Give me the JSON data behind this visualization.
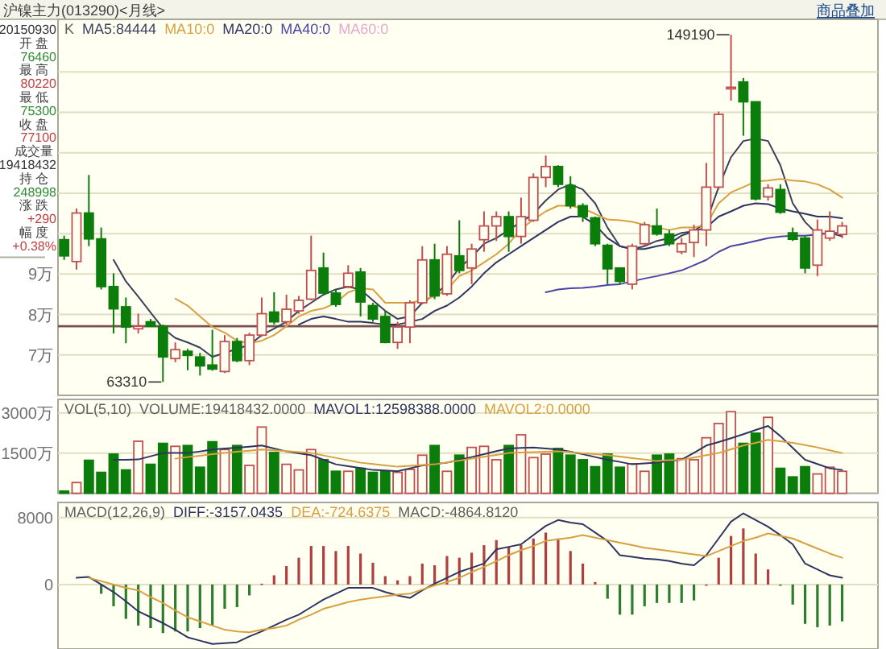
{
  "chart_data": [
    {
      "type": "candlestick",
      "title": "沪镍主力(013290)<月线>",
      "categories": [
        null,
        null,
        null,
        null,
        null,
        null,
        null,
        null,
        null,
        null,
        null,
        null,
        null,
        null,
        null,
        null,
        null,
        null,
        null,
        null,
        null,
        null,
        null,
        null,
        null,
        null,
        null,
        null,
        null,
        null,
        null,
        null,
        null,
        null,
        null,
        null,
        null,
        null,
        null,
        null,
        null,
        null,
        null,
        null,
        null,
        null,
        null,
        null,
        null,
        null,
        null,
        null,
        null,
        null,
        null,
        null,
        null,
        null,
        null,
        null,
        null,
        null,
        null,
        null
      ],
      "ohlc": [
        [
          9.85,
          9.95,
          9.35,
          9.45
        ],
        [
          9.31,
          10.62,
          9.11,
          10.51
        ],
        [
          10.51,
          11.45,
          9.69,
          9.87
        ],
        [
          9.87,
          10.15,
          8.62,
          8.69
        ],
        [
          8.69,
          9.02,
          7.53,
          8.14
        ],
        [
          8.19,
          8.42,
          7.29,
          7.69
        ],
        [
          7.646,
          8.022,
          7.53,
          7.71
        ],
        [
          7.82,
          7.89,
          7.69,
          7.71
        ],
        [
          7.71,
          7.75,
          6.331,
          6.95
        ],
        [
          6.91,
          7.31,
          6.82,
          7.13
        ],
        [
          7.09,
          7.15,
          6.62,
          6.99
        ],
        [
          6.95,
          7.05,
          6.49,
          6.73
        ],
        [
          6.75,
          7.62,
          6.61,
          6.65
        ],
        [
          6.59,
          7.49,
          6.55,
          7.33
        ],
        [
          7.33,
          7.42,
          6.82,
          6.86
        ],
        [
          6.86,
          7.55,
          6.75,
          7.49
        ],
        [
          7.49,
          8.42,
          7.45,
          8.02
        ],
        [
          8.06,
          8.55,
          7.75,
          7.82
        ],
        [
          7.82,
          8.49,
          7.75,
          8.13
        ],
        [
          8.09,
          8.46,
          8.02,
          8.35
        ],
        [
          8.38,
          9.95,
          8.35,
          9.09
        ],
        [
          9.15,
          9.53,
          8.49,
          8.53
        ],
        [
          8.53,
          8.62,
          8.19,
          8.25
        ],
        [
          8.69,
          9.22,
          8.65,
          9.02
        ],
        [
          9.05,
          9.15,
          7.95,
          8.31
        ],
        [
          8.22,
          8.29,
          7.82,
          7.89
        ],
        [
          7.95,
          8.09,
          7.29,
          7.31
        ],
        [
          7.31,
          7.82,
          7.15,
          7.69
        ],
        [
          7.69,
          8.35,
          7.29,
          8.29
        ],
        [
          8.29,
          9.69,
          8.25,
          9.35
        ],
        [
          9.35,
          9.75,
          8.38,
          8.46
        ],
        [
          8.51,
          9.69,
          8.46,
          9.49
        ],
        [
          9.45,
          10.33,
          9.02,
          9.09
        ],
        [
          9.15,
          9.75,
          8.75,
          9.62
        ],
        [
          9.85,
          10.55,
          9.55,
          10.19
        ],
        [
          10.19,
          10.55,
          9.82,
          10.42
        ],
        [
          10.42,
          10.55,
          9.55,
          9.93
        ],
        [
          9.93,
          10.89,
          9.75,
          10.42
        ],
        [
          10.33,
          11.49,
          10.29,
          11.39
        ],
        [
          11.39,
          11.93,
          11.15,
          11.66
        ],
        [
          11.66,
          11.69,
          11.15,
          11.22
        ],
        [
          11.19,
          11.42,
          10.62,
          10.69
        ],
        [
          10.69,
          10.75,
          10.29,
          10.42
        ],
        [
          10.39,
          10.42,
          9.69,
          9.75
        ],
        [
          9.71,
          9.75,
          8.75,
          9.13
        ],
        [
          9.15,
          9.15,
          8.75,
          8.82
        ],
        [
          8.75,
          9.75,
          8.62,
          9.69
        ],
        [
          9.75,
          10.29,
          9.69,
          10.22
        ],
        [
          10.19,
          10.62,
          9.95,
          9.99
        ],
        [
          9.99,
          10.09,
          9.69,
          9.75
        ],
        [
          9.55,
          9.89,
          9.49,
          9.75
        ],
        [
          9.78,
          10.22,
          9.42,
          10.09
        ],
        [
          10.09,
          11.75,
          9.69,
          11.15
        ],
        [
          11.15,
          13.02,
          11.09,
          12.95
        ],
        [
          13.6,
          14.919,
          13.29,
          13.62
        ],
        [
          13.75,
          13.85,
          12.42,
          13.26
        ],
        [
          13.26,
          13.26,
          10.82,
          10.86
        ],
        [
          10.91,
          11.22,
          10.82,
          11.13
        ],
        [
          11.09,
          11.22,
          10.49,
          10.53
        ],
        [
          10.02,
          10.15,
          9.82,
          9.86
        ],
        [
          9.89,
          9.95,
          9.02,
          9.15
        ],
        [
          9.22,
          10.35,
          8.95,
          10.09
        ],
        [
          9.89,
          10.55,
          9.82,
          10.06
        ],
        [
          9.98,
          10.29,
          9.89,
          10.19
        ]
      ],
      "colors": [
        "#0b7d0b",
        "#c05050",
        "#0b7d0b",
        "#0b7d0b",
        "#0b7d0b",
        "#0b7d0b",
        "#c05050",
        "#0b7d0b",
        "#0b7d0b",
        "#c05050",
        "#0b7d0b",
        "#0b7d0b",
        "#0b7d0b",
        "#c05050",
        "#0b7d0b",
        "#c05050",
        "#c05050",
        "#0b7d0b",
        "#c05050",
        "#c05050",
        "#c05050",
        "#0b7d0b",
        "#0b7d0b",
        "#c05050",
        "#0b7d0b",
        "#0b7d0b",
        "#0b7d0b",
        "#c05050",
        "#c05050",
        "#c05050",
        "#0b7d0b",
        "#c05050",
        "#0b7d0b",
        "#c05050",
        "#c05050",
        "#c05050",
        "#0b7d0b",
        "#c05050",
        "#c05050",
        "#c05050",
        "#0b7d0b",
        "#0b7d0b",
        "#0b7d0b",
        "#0b7d0b",
        "#0b7d0b",
        "#0b7d0b",
        "#c05050",
        "#c05050",
        "#0b7d0b",
        "#0b7d0b",
        "#c05050",
        "#c05050",
        "#c05050",
        "#c05050",
        "#c05050",
        "#0b7d0b",
        "#0b7d0b",
        "#c05050",
        "#0b7d0b",
        "#0b7d0b",
        "#0b7d0b",
        "#c05050",
        "#c05050",
        "#c05050"
      ],
      "series": [
        {
          "name": "MA5:84444",
          "type": "line",
          "color": "#3a3f5c",
          "values": [
            null,
            null,
            null,
            null,
            9.35,
            8.82,
            8.44,
            8.05,
            7.66,
            7.42,
            7.31,
            7.18,
            6.95,
            7.05,
            7.15,
            7.25,
            7.49,
            7.65,
            7.82,
            8.09,
            8.29,
            8.49,
            8.62,
            8.69,
            8.62,
            8.35,
            8.09,
            7.89,
            7.95,
            8.29,
            8.49,
            8.75,
            9.15,
            9.42,
            9.75,
            9.89,
            10.09,
            10.29,
            10.49,
            10.82,
            11.09,
            11.22,
            11.09,
            10.75,
            10.15,
            9.69,
            9.62,
            9.69,
            9.82,
            9.89,
            10.02,
            10.06,
            10.29,
            11.15,
            11.89,
            12.29,
            12.35,
            12.29,
            11.69,
            10.75,
            10.29,
            9.98,
            10.02,
            9.93
          ]
        },
        {
          "name": "MA10:0",
          "type": "line",
          "color": "#d8a040",
          "values": [
            null,
            null,
            null,
            null,
            null,
            null,
            null,
            null,
            null,
            8.39,
            8.22,
            7.95,
            7.69,
            7.55,
            7.35,
            7.29,
            7.35,
            7.49,
            7.71,
            7.95,
            8.09,
            8.15,
            8.29,
            8.55,
            8.65,
            8.62,
            8.29,
            8.29,
            8.29,
            8.35,
            8.45,
            8.62,
            8.95,
            9.09,
            9.29,
            9.49,
            9.75,
            10.11,
            10.35,
            10.55,
            10.69,
            10.69,
            10.62,
            10.49,
            10.35,
            10.33,
            10.29,
            10.22,
            10.15,
            10.09,
            10.15,
            10.15,
            10.22,
            10.75,
            11.02,
            11.15,
            11.29,
            11.31,
            11.35,
            11.31,
            11.29,
            11.22,
            11.09,
            10.89
          ]
        },
        {
          "name": "MA20:0",
          "type": "line",
          "color": "#2e3560",
          "values": [
            null,
            null,
            null,
            null,
            null,
            null,
            null,
            null,
            null,
            null,
            null,
            null,
            null,
            null,
            null,
            null,
            null,
            null,
            null,
            7.75,
            7.89,
            7.95,
            7.89,
            7.82,
            7.82,
            7.79,
            7.75,
            7.75,
            7.82,
            7.89,
            8.09,
            8.22,
            8.42,
            8.69,
            9.02,
            9.29,
            9.49,
            9.69,
            9.89,
            10.09,
            10.29,
            10.42,
            10.42,
            10.22,
            9.89,
            9.69,
            9.62,
            9.62,
            9.69,
            9.75,
            9.95,
            10.06,
            10.15,
            10.42,
            10.55,
            10.69,
            10.75,
            10.73,
            10.62,
            10.55,
            10.49,
            10.42,
            10.42,
            10.38
          ]
        },
        {
          "name": "MA40:0",
          "type": "line",
          "color": "#4a44a8",
          "values": [
            null,
            null,
            null,
            null,
            null,
            null,
            null,
            null,
            null,
            null,
            null,
            null,
            null,
            null,
            null,
            null,
            null,
            null,
            null,
            null,
            null,
            null,
            null,
            null,
            null,
            null,
            null,
            null,
            null,
            null,
            null,
            null,
            null,
            null,
            null,
            null,
            null,
            null,
            null,
            8.55,
            8.62,
            8.65,
            8.66,
            8.69,
            8.73,
            8.75,
            8.82,
            8.89,
            8.95,
            9.02,
            9.09,
            9.22,
            9.35,
            9.55,
            9.69,
            9.75,
            9.82,
            9.89,
            9.93,
            9.95,
            9.95,
            9.98,
            10.02,
            10.02
          ]
        },
        {
          "name": "MA60:0",
          "type": "line",
          "color": "#e8a8d0",
          "values": [
            null,
            null,
            null,
            null,
            null,
            null,
            null,
            null,
            null,
            null,
            null,
            null,
            null,
            null,
            null,
            null,
            null,
            null,
            null,
            null,
            null,
            null,
            null,
            null,
            null,
            null,
            null,
            null,
            null,
            null,
            null,
            null,
            null,
            null,
            null,
            null,
            null,
            null,
            null,
            null,
            null,
            null,
            null,
            null,
            null,
            null,
            null,
            null,
            null,
            null,
            null,
            null,
            null,
            null,
            null,
            null,
            null,
            null,
            null,
            null,
            null,
            null,
            null,
            null
          ]
        }
      ],
      "ylim": [
        6,
        15.3
      ],
      "yticks": [
        {
          "value": 7,
          "label": "7万"
        },
        {
          "value": 8,
          "label": "8万"
        },
        {
          "value": 9,
          "label": "9万"
        },
        {
          "value": 10,
          "label": null
        },
        {
          "value": 11,
          "label": null
        },
        {
          "value": 12,
          "label": null
        },
        {
          "value": 13,
          "label": null
        },
        {
          "value": 14,
          "label": null
        }
      ],
      "grid": "y",
      "legend": "top left",
      "tick_labels": "y",
      "ref_lines": [
        {
          "axis": "y",
          "value": 7.71,
          "color": "#7a5050",
          "line_style": "solid"
        }
      ],
      "annotations": [
        "K",
        "20150930",
        "开 盘",
        "76460",
        "最 高",
        "80220",
        "最 低",
        "75300",
        "收 盘",
        "77100",
        "成交量",
        "19418432",
        "持 仓",
        "248998",
        "涨 跌",
        "+290",
        "幅 度",
        "+0.38%",
        "商品叠加",
        "63310",
        "149190"
      ]
    },
    {
      "type": "bar",
      "categories": [
        null,
        null,
        null,
        null,
        null,
        null,
        null,
        null,
        null,
        null,
        null,
        null,
        null,
        null,
        null,
        null,
        null,
        null,
        null,
        null,
        null,
        null,
        null,
        null,
        null,
        null,
        null,
        null,
        null,
        null,
        null,
        null,
        null,
        null,
        null,
        null,
        null,
        null,
        null,
        null,
        null,
        null,
        null,
        null,
        null,
        null,
        null,
        null,
        null,
        null,
        null,
        null,
        null,
        null,
        null,
        null,
        null,
        null,
        null,
        null,
        null,
        null,
        null,
        null
      ],
      "series": [
        {
          "name": "VOLUME:19418432.0000",
          "type": "bar",
          "values": [
            80,
            400,
            1230,
            780,
            1460,
            870,
            1940,
            1080,
            1860,
            1750,
            1780,
            970,
            1920,
            1630,
            1780,
            1040,
            2470,
            1520,
            1080,
            870,
            1630,
            1250,
            820,
            820,
            930,
            780,
            820,
            780,
            890,
            1420,
            1780,
            820,
            1420,
            1710,
            1750,
            1250,
            1780,
            2180,
            1330,
            1460,
            1670,
            1420,
            1250,
            990,
            1460,
            970,
            1100,
            820,
            1420,
            1460,
            1290,
            1250,
            2070,
            2600,
            3040,
            1860,
            2240,
            2830,
            930,
            610,
            990,
            720,
            970,
            820
          ],
          "colors": [
            "#0b7d0b",
            "#c05050",
            "#0b7d0b",
            "#0b7d0b",
            "#0b7d0b",
            "#0b7d0b",
            "#c05050",
            "#0b7d0b",
            "#0b7d0b",
            "#c05050",
            "#0b7d0b",
            "#0b7d0b",
            "#0b7d0b",
            "#c05050",
            "#0b7d0b",
            "#c05050",
            "#c05050",
            "#0b7d0b",
            "#c05050",
            "#c05050",
            "#c05050",
            "#0b7d0b",
            "#0b7d0b",
            "#c05050",
            "#0b7d0b",
            "#0b7d0b",
            "#0b7d0b",
            "#c05050",
            "#c05050",
            "#c05050",
            "#0b7d0b",
            "#c05050",
            "#0b7d0b",
            "#c05050",
            "#c05050",
            "#c05050",
            "#0b7d0b",
            "#c05050",
            "#c05050",
            "#c05050",
            "#0b7d0b",
            "#0b7d0b",
            "#0b7d0b",
            "#0b7d0b",
            "#0b7d0b",
            "#0b7d0b",
            "#c05050",
            "#c05050",
            "#0b7d0b",
            "#0b7d0b",
            "#c05050",
            "#c05050",
            "#c05050",
            "#c05050",
            "#c05050",
            "#0b7d0b",
            "#0b7d0b",
            "#c05050",
            "#0b7d0b",
            "#0b7d0b",
            "#0b7d0b",
            "#c05050",
            "#c05050",
            "#c05050"
          ]
        },
        {
          "name": "MAVOL1:12598388.0000",
          "type": "line",
          "color": "#2e3560",
          "values": [
            null,
            null,
            null,
            null,
            1250,
            1250,
            1260,
            1380,
            1500,
            1500,
            1500,
            1560,
            1630,
            1670,
            1700,
            1740,
            1780,
            1670,
            1560,
            1490,
            1420,
            1250,
            1080,
            1010,
            940,
            870,
            850,
            820,
            930,
            1040,
            1090,
            1140,
            1250,
            1350,
            1460,
            1570,
            1670,
            1690,
            1710,
            1670,
            1630,
            1550,
            1460,
            1350,
            1250,
            1170,
            1080,
            1110,
            1140,
            1200,
            1250,
            1510,
            1780,
            1910,
            2050,
            2200,
            2360,
            2510,
            2130,
            1690,
            1250,
            1090,
            930,
            870
          ]
        },
        {
          "name": "MAVOL2:0.0000",
          "type": "line",
          "color": "#d8a040",
          "values": [
            null,
            null,
            null,
            null,
            null,
            null,
            null,
            null,
            null,
            1290,
            1350,
            1400,
            1460,
            1500,
            1550,
            1590,
            1630,
            1600,
            1570,
            1530,
            1500,
            1410,
            1320,
            1230,
            1140,
            1090,
            1040,
            990,
            1020,
            1050,
            1080,
            1150,
            1220,
            1290,
            1360,
            1430,
            1500,
            1520,
            1530,
            1550,
            1560,
            1530,
            1490,
            1460,
            1420,
            1370,
            1310,
            1260,
            1200,
            1230,
            1250,
            1330,
            1420,
            1500,
            1640,
            1780,
            1880,
            1990,
            1940,
            1880,
            1800,
            1710,
            1600,
            1500
          ]
        }
      ],
      "ylim": [
        0,
        3500
      ],
      "yticks": [
        {
          "value": 1500,
          "label": "1500万"
        },
        {
          "value": 3000,
          "label": "3000万"
        }
      ],
      "grid": "y",
      "legend": "top left",
      "tick_labels": "y",
      "annotations": [
        "VOL(5,10)"
      ]
    },
    {
      "type": "bar",
      "categories": [
        null,
        null,
        null,
        null,
        null,
        null,
        null,
        null,
        null,
        null,
        null,
        null,
        null,
        null,
        null,
        null,
        null,
        null,
        null,
        null,
        null,
        null,
        null,
        null,
        null,
        null,
        null,
        null,
        null,
        null,
        null,
        null,
        null,
        null,
        null,
        null,
        null,
        null,
        null,
        null,
        null,
        null,
        null,
        null,
        null,
        null,
        null,
        null,
        null,
        null,
        null,
        null,
        null,
        null,
        null,
        null,
        null,
        null,
        null,
        null,
        null,
        null,
        null,
        null
      ],
      "series": [
        {
          "name": "DIFF:-3157.0435",
          "type": "line",
          "color": "#2e3560",
          "values": [
            null,
            800,
            900,
            0,
            -900,
            -2000,
            -3200,
            -3900,
            -4600,
            -5400,
            -6300,
            -6700,
            -7100,
            -7000,
            -6900,
            -6200,
            -5600,
            -4900,
            -4200,
            -3600,
            -2700,
            -1800,
            -1100,
            -400,
            -400,
            -400,
            -900,
            -1300,
            -1600,
            -700,
            100,
            800,
            1500,
            2000,
            2500,
            4200,
            4500,
            4800,
            5900,
            7000,
            7700,
            7400,
            7200,
            6200,
            5200,
            3500,
            3300,
            3100,
            3000,
            2800,
            2500,
            2300,
            3500,
            5500,
            7500,
            8500,
            7700,
            6900,
            5900,
            4800,
            2500,
            1800,
            1100,
            800
          ]
        },
        {
          "name": "DEA:-724.6375",
          "type": "line",
          "color": "#d8a040",
          "values": [
            null,
            null,
            800,
            400,
            0,
            -400,
            -700,
            -1500,
            -2200,
            -3100,
            -3900,
            -4400,
            -4900,
            -5400,
            -5600,
            -5700,
            -5400,
            -5200,
            -4900,
            -4200,
            -3600,
            -2900,
            -2500,
            -2100,
            -1800,
            -1600,
            -1400,
            -1200,
            -1100,
            -600,
            -100,
            300,
            800,
            1500,
            2100,
            2800,
            3500,
            4100,
            4600,
            5200,
            5400,
            5600,
            5900,
            5600,
            5300,
            5000,
            4700,
            4400,
            4200,
            4000,
            3800,
            3600,
            3400,
            4000,
            4600,
            5200,
            5600,
            6100,
            5800,
            5500,
            4900,
            4300,
            3700,
            3200
          ]
        },
        {
          "name": "MACD:-4864.8120",
          "type": "bar",
          "values": [
            null,
            null,
            null,
            -1100,
            -2600,
            -4100,
            -4900,
            -5200,
            -5800,
            -5600,
            -5600,
            -5200,
            -4900,
            -2900,
            -2700,
            -1300,
            100,
            1100,
            2200,
            3200,
            4600,
            4600,
            4000,
            4600,
            3700,
            2600,
            1000,
            500,
            1000,
            2500,
            2300,
            3400,
            3200,
            3800,
            4700,
            5300,
            4500,
            4700,
            5500,
            6200,
            5500,
            4000,
            2500,
            300,
            -1700,
            -3600,
            -3600,
            -2600,
            -2200,
            -2200,
            -2200,
            -1900,
            0,
            3200,
            5800,
            6700,
            3700,
            1800,
            -100,
            -2400,
            -4700,
            -5100,
            -4900,
            -4400
          ],
          "colors": [
            "#b04040",
            "#b04040",
            "#b04040",
            "#2e7d2e",
            "#2e7d2e",
            "#2e7d2e",
            "#2e7d2e",
            "#2e7d2e",
            "#2e7d2e",
            "#2e7d2e",
            "#2e7d2e",
            "#2e7d2e",
            "#2e7d2e",
            "#2e7d2e",
            "#2e7d2e",
            "#2e7d2e",
            "#b04040",
            "#b04040",
            "#b04040",
            "#b04040",
            "#b04040",
            "#b04040",
            "#b04040",
            "#b04040",
            "#b04040",
            "#b04040",
            "#b04040",
            "#b04040",
            "#b04040",
            "#b04040",
            "#b04040",
            "#b04040",
            "#b04040",
            "#b04040",
            "#b04040",
            "#b04040",
            "#b04040",
            "#b04040",
            "#b04040",
            "#b04040",
            "#b04040",
            "#b04040",
            "#b04040",
            "#b04040",
            "#2e7d2e",
            "#2e7d2e",
            "#2e7d2e",
            "#2e7d2e",
            "#2e7d2e",
            "#2e7d2e",
            "#2e7d2e",
            "#2e7d2e",
            "#b04040",
            "#b04040",
            "#b04040",
            "#b04040",
            "#b04040",
            "#b04040",
            "#2e7d2e",
            "#2e7d2e",
            "#2e7d2e",
            "#2e7d2e",
            "#2e7d2e",
            "#2e7d2e"
          ]
        }
      ],
      "ylim": [
        -7700,
        9800
      ],
      "yticks": [
        0,
        8000
      ],
      "grid": "y",
      "legend": "top left",
      "tick_labels": "y",
      "annotations": [
        "MACD(12,26,9)"
      ]
    }
  ]
}
